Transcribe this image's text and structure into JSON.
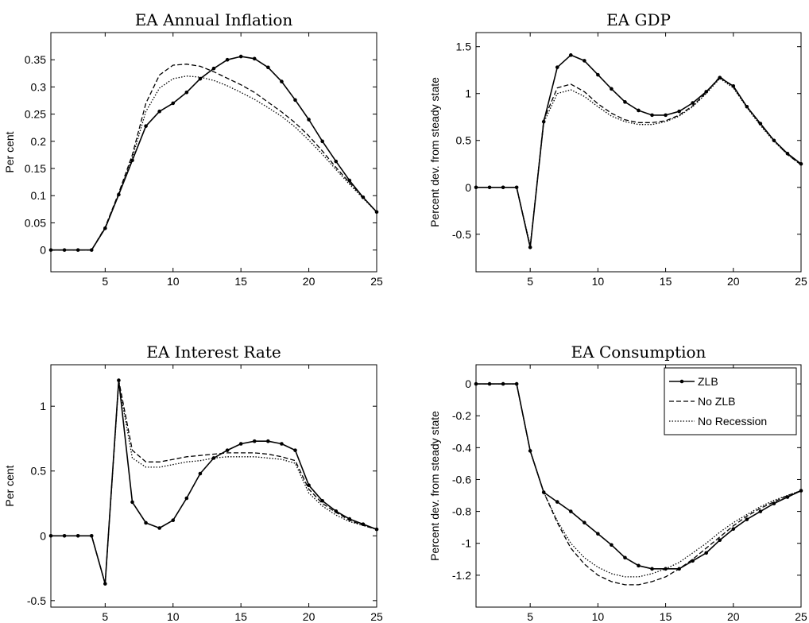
{
  "chart_data": [
    {
      "type": "line",
      "title": "EA Annual Inflation",
      "xlabel": "",
      "ylabel": "Per cent",
      "xlim": [
        1,
        25
      ],
      "ylim": [
        -0.04,
        0.4
      ],
      "xticks": [
        5,
        10,
        15,
        20,
        25
      ],
      "yticks": [
        0,
        0.05,
        0.1,
        0.15,
        0.2,
        0.25,
        0.3,
        0.35
      ],
      "ytick_labels": [
        "0",
        "0.05",
        "0.1",
        "0.15",
        "0.2",
        "0.25",
        "0.3",
        "0.35"
      ],
      "x": [
        1,
        2,
        3,
        4,
        5,
        6,
        7,
        8,
        9,
        10,
        11,
        12,
        13,
        14,
        15,
        16,
        17,
        18,
        19,
        20,
        21,
        22,
        23,
        24,
        25
      ],
      "series": [
        {
          "name": "ZLB",
          "style": "solid-marker",
          "values": [
            0,
            0,
            0,
            0,
            0.04,
            0.102,
            0.165,
            0.228,
            0.255,
            0.27,
            0.29,
            0.315,
            0.334,
            0.35,
            0.356,
            0.352,
            0.336,
            0.31,
            0.276,
            0.24,
            0.2,
            0.163,
            0.128,
            0.097,
            0.07
          ]
        },
        {
          "name": "No ZLB",
          "style": "dashed",
          "values": [
            0,
            0,
            0,
            0,
            0.042,
            0.105,
            0.175,
            0.27,
            0.322,
            0.34,
            0.342,
            0.338,
            0.328,
            0.316,
            0.304,
            0.29,
            0.272,
            0.254,
            0.234,
            0.21,
            0.182,
            0.152,
            0.124,
            0.097,
            0.07
          ]
        },
        {
          "name": "No Recession",
          "style": "dotted",
          "values": [
            0,
            0,
            0,
            0,
            0.041,
            0.103,
            0.17,
            0.255,
            0.298,
            0.315,
            0.32,
            0.318,
            0.312,
            0.302,
            0.29,
            0.277,
            0.262,
            0.246,
            0.226,
            0.202,
            0.176,
            0.148,
            0.121,
            0.095,
            0.07
          ]
        }
      ]
    },
    {
      "type": "line",
      "title": "EA GDP",
      "xlabel": "",
      "ylabel": "Percent dev. from steady state",
      "xlim": [
        1,
        25
      ],
      "ylim": [
        -0.9,
        1.65
      ],
      "xticks": [
        5,
        10,
        15,
        20,
        25
      ],
      "yticks": [
        -0.5,
        0,
        0.5,
        1,
        1.5
      ],
      "ytick_labels": [
        "-0.5",
        "0",
        "0.5",
        "1",
        "1.5"
      ],
      "x": [
        1,
        2,
        3,
        4,
        5,
        6,
        7,
        8,
        9,
        10,
        11,
        12,
        13,
        14,
        15,
        16,
        17,
        18,
        19,
        20,
        21,
        22,
        23,
        24,
        25
      ],
      "series": [
        {
          "name": "ZLB",
          "style": "solid-marker",
          "values": [
            0,
            0,
            0,
            0,
            -0.64,
            0.7,
            1.28,
            1.41,
            1.35,
            1.2,
            1.05,
            0.91,
            0.82,
            0.77,
            0.77,
            0.81,
            0.9,
            1.02,
            1.17,
            1.08,
            0.86,
            0.68,
            0.5,
            0.36,
            0.25
          ]
        },
        {
          "name": "No ZLB",
          "style": "dashed",
          "values": [
            0,
            0,
            0,
            0,
            -0.64,
            0.72,
            1.06,
            1.1,
            1.02,
            0.89,
            0.79,
            0.72,
            0.69,
            0.69,
            0.71,
            0.77,
            0.87,
            1.01,
            1.18,
            1.07,
            0.86,
            0.67,
            0.5,
            0.35,
            0.24
          ]
        },
        {
          "name": "No Recession",
          "style": "dotted",
          "values": [
            0,
            0,
            0,
            0,
            -0.62,
            0.69,
            1.0,
            1.04,
            0.97,
            0.86,
            0.76,
            0.7,
            0.67,
            0.67,
            0.7,
            0.76,
            0.86,
            1.0,
            1.16,
            1.06,
            0.85,
            0.66,
            0.49,
            0.35,
            0.24
          ]
        }
      ]
    },
    {
      "type": "line",
      "title": "EA Interest Rate",
      "xlabel": "",
      "ylabel": "Per cent",
      "xlim": [
        1,
        25
      ],
      "ylim": [
        -0.55,
        1.32
      ],
      "xticks": [
        5,
        10,
        15,
        20,
        25
      ],
      "yticks": [
        -0.5,
        0,
        0.5,
        1
      ],
      "ytick_labels": [
        "-0.5",
        "0",
        "0.5",
        "1"
      ],
      "x": [
        1,
        2,
        3,
        4,
        5,
        6,
        7,
        8,
        9,
        10,
        11,
        12,
        13,
        14,
        15,
        16,
        17,
        18,
        19,
        20,
        21,
        22,
        23,
        24,
        25
      ],
      "series": [
        {
          "name": "ZLB",
          "style": "solid-marker",
          "values": [
            0,
            0,
            0,
            0,
            -0.37,
            1.2,
            0.26,
            0.1,
            0.06,
            0.12,
            0.29,
            0.48,
            0.6,
            0.66,
            0.71,
            0.73,
            0.73,
            0.71,
            0.66,
            0.39,
            0.27,
            0.19,
            0.13,
            0.09,
            0.05
          ]
        },
        {
          "name": "No ZLB",
          "style": "dashed",
          "values": [
            0,
            0,
            0,
            0,
            -0.37,
            1.2,
            0.66,
            0.57,
            0.57,
            0.59,
            0.61,
            0.62,
            0.63,
            0.64,
            0.64,
            0.64,
            0.63,
            0.61,
            0.58,
            0.36,
            0.25,
            0.18,
            0.12,
            0.08,
            0.05
          ]
        },
        {
          "name": "No Recession",
          "style": "dotted",
          "values": [
            0,
            0,
            0,
            0,
            -0.37,
            1.18,
            0.6,
            0.53,
            0.53,
            0.55,
            0.57,
            0.58,
            0.6,
            0.61,
            0.61,
            0.61,
            0.6,
            0.59,
            0.56,
            0.33,
            0.23,
            0.16,
            0.11,
            0.08,
            0.05
          ]
        }
      ]
    },
    {
      "type": "line",
      "title": "EA Consumption",
      "xlabel": "",
      "ylabel": "Percent dev. from steady state",
      "xlim": [
        1,
        25
      ],
      "ylim": [
        -1.4,
        0.12
      ],
      "xticks": [
        5,
        10,
        15,
        20,
        25
      ],
      "yticks": [
        -1.2,
        -1,
        -0.8,
        -0.6,
        -0.4,
        -0.2,
        0
      ],
      "ytick_labels": [
        "-1.2",
        "-1",
        "-0.8",
        "-0.6",
        "-0.4",
        "-0.2",
        "0"
      ],
      "legend": "top-right",
      "x": [
        1,
        2,
        3,
        4,
        5,
        6,
        7,
        8,
        9,
        10,
        11,
        12,
        13,
        14,
        15,
        16,
        17,
        18,
        19,
        20,
        21,
        22,
        23,
        24,
        25
      ],
      "series": [
        {
          "name": "ZLB",
          "style": "solid-marker",
          "values": [
            0,
            0,
            0,
            0,
            -0.42,
            -0.68,
            -0.74,
            -0.8,
            -0.87,
            -0.94,
            -1.01,
            -1.09,
            -1.14,
            -1.16,
            -1.16,
            -1.16,
            -1.11,
            -1.06,
            -0.98,
            -0.91,
            -0.85,
            -0.8,
            -0.75,
            -0.71,
            -0.67
          ]
        },
        {
          "name": "No ZLB",
          "style": "dashed",
          "values": [
            0,
            0,
            0,
            0,
            -0.42,
            -0.68,
            -0.87,
            -1.03,
            -1.13,
            -1.2,
            -1.24,
            -1.26,
            -1.26,
            -1.24,
            -1.21,
            -1.16,
            -1.1,
            -1.03,
            -0.96,
            -0.89,
            -0.83,
            -0.78,
            -0.74,
            -0.7,
            -0.67
          ]
        },
        {
          "name": "No Recession",
          "style": "dotted",
          "values": [
            0,
            0,
            0,
            0,
            -0.42,
            -0.68,
            -0.86,
            -1.0,
            -1.09,
            -1.15,
            -1.19,
            -1.21,
            -1.21,
            -1.19,
            -1.16,
            -1.12,
            -1.06,
            -1.0,
            -0.93,
            -0.87,
            -0.82,
            -0.77,
            -0.73,
            -0.7,
            -0.67
          ]
        }
      ]
    }
  ]
}
